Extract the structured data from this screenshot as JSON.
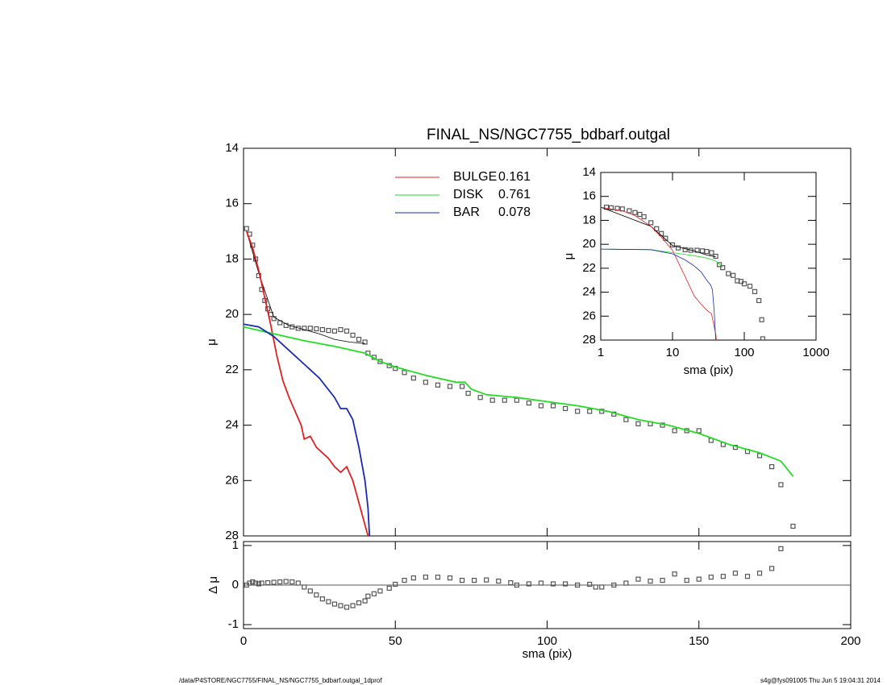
{
  "chart_data": [
    {
      "type": "line",
      "title": "FINAL_NS/NGC7755_bdbarf.outgal",
      "ylabel": "μ",
      "xlim": [
        0,
        200
      ],
      "ylim": [
        14,
        28
      ],
      "invert_y": true,
      "xticks": [
        0,
        50,
        100,
        150,
        200
      ],
      "yticks": [
        14,
        16,
        18,
        20,
        22,
        24,
        26,
        28
      ],
      "series": [
        {
          "marker": "square",
          "color": "#555555",
          "x": [
            1,
            2,
            3,
            4,
            5,
            6,
            7,
            8,
            9,
            10,
            12,
            14,
            16,
            18,
            20,
            22,
            24,
            26,
            28,
            30,
            32,
            34,
            36,
            38,
            40,
            41,
            43,
            45,
            48,
            50,
            53,
            56,
            60,
            64,
            68,
            72,
            74,
            78,
            82,
            86,
            90,
            94,
            98,
            102,
            106,
            110,
            114,
            118,
            122,
            126,
            130,
            134,
            138,
            142,
            146,
            150,
            154,
            158,
            162,
            166,
            170,
            174,
            177,
            181
          ],
          "values": [
            16.9,
            17.1,
            17.5,
            18.0,
            18.6,
            19.1,
            19.5,
            19.8,
            20.0,
            20.15,
            20.3,
            20.4,
            20.45,
            20.5,
            20.5,
            20.5,
            20.52,
            20.55,
            20.58,
            20.6,
            20.55,
            20.6,
            20.75,
            20.9,
            21.0,
            21.4,
            21.55,
            21.7,
            21.85,
            21.95,
            22.1,
            22.3,
            22.45,
            22.55,
            22.6,
            22.6,
            22.85,
            23.0,
            23.1,
            23.1,
            23.1,
            23.2,
            23.3,
            23.3,
            23.4,
            23.5,
            23.5,
            23.5,
            23.6,
            23.8,
            23.95,
            23.95,
            24.0,
            24.2,
            24.2,
            24.2,
            24.55,
            24.7,
            24.8,
            24.95,
            25.1,
            25.5,
            26.15,
            27.65
          ]
        },
        {
          "color": "#000000",
          "x": [
            1,
            5,
            10,
            15,
            20,
            25,
            30,
            35,
            40
          ],
          "values": [
            17.0,
            18.5,
            20.1,
            20.4,
            20.55,
            20.7,
            20.9,
            21.0,
            21.05
          ]
        },
        {
          "name": "BULGE",
          "fraction": 0.161,
          "color": "#e02020",
          "x": [
            1,
            3,
            5,
            7,
            9,
            11,
            13,
            15,
            17,
            19,
            20,
            22,
            24,
            26,
            28,
            30,
            32,
            34,
            36,
            38,
            40,
            41
          ],
          "values": [
            17.0,
            17.6,
            18.4,
            19.4,
            20.4,
            21.5,
            22.4,
            23.0,
            23.5,
            24.0,
            24.5,
            24.4,
            24.8,
            25.0,
            25.2,
            25.5,
            25.7,
            25.5,
            26.0,
            26.8,
            27.6,
            28.0
          ]
        },
        {
          "name": "DISK",
          "fraction": 0.761,
          "color": "#22dd22",
          "x": [
            0,
            10,
            20,
            30,
            40,
            45,
            50,
            60,
            70,
            73,
            75,
            80,
            90,
            100,
            110,
            120,
            130,
            140,
            150,
            160,
            170,
            177,
            181
          ],
          "values": [
            20.45,
            20.7,
            20.95,
            21.15,
            21.4,
            21.7,
            21.9,
            22.2,
            22.45,
            22.45,
            22.7,
            22.9,
            23.0,
            23.15,
            23.3,
            23.5,
            23.8,
            24.0,
            24.3,
            24.7,
            25.0,
            25.3,
            25.85
          ]
        },
        {
          "name": "BAR",
          "fraction": 0.078,
          "color": "#1a2ab0",
          "x": [
            0,
            5,
            10,
            15,
            20,
            25,
            30,
            32,
            34,
            36,
            38,
            40,
            41,
            41.5
          ],
          "values": [
            20.35,
            20.45,
            20.8,
            21.3,
            21.8,
            22.3,
            23.0,
            23.4,
            23.4,
            23.8,
            24.8,
            26.0,
            27.0,
            28.0
          ]
        }
      ]
    },
    {
      "type": "line",
      "xlabel": "sma (pix)",
      "ylabel": "Δ μ",
      "xlim": [
        0,
        200
      ],
      "ylim": [
        -1.1,
        1.1
      ],
      "reference_line": 0,
      "xticks": [
        0,
        50,
        100,
        150,
        200
      ],
      "yticks": [
        -1,
        0,
        1
      ],
      "series": [
        {
          "marker": "square",
          "color": "#555555",
          "x": [
            1,
            2,
            3,
            4,
            5,
            6,
            8,
            10,
            12,
            14,
            16,
            18,
            20,
            22,
            24,
            26,
            28,
            30,
            32,
            34,
            36,
            38,
            40,
            41,
            43,
            45,
            48,
            50,
            53,
            56,
            60,
            64,
            68,
            72,
            76,
            80,
            84,
            88,
            90,
            94,
            98,
            102,
            106,
            110,
            114,
            116,
            118,
            122,
            126,
            130,
            134,
            138,
            142,
            146,
            150,
            154,
            158,
            162,
            166,
            170,
            174,
            177
          ],
          "values": [
            0,
            0.05,
            0.08,
            0.05,
            0.03,
            0.05,
            0.06,
            0.07,
            0.08,
            0.09,
            0.08,
            0.05,
            -0.05,
            -0.15,
            -0.25,
            -0.35,
            -0.42,
            -0.48,
            -0.52,
            -0.56,
            -0.52,
            -0.45,
            -0.4,
            -0.28,
            -0.22,
            -0.15,
            -0.08,
            0.02,
            0.12,
            0.18,
            0.2,
            0.2,
            0.18,
            0.12,
            0.12,
            0.13,
            0.1,
            0.06,
            0.0,
            0.03,
            0.05,
            0.03,
            0.03,
            0.0,
            0.02,
            -0.05,
            -0.05,
            0.0,
            0.05,
            0.15,
            0.1,
            0.12,
            0.28,
            0.12,
            0.15,
            0.2,
            0.22,
            0.3,
            0.22,
            0.3,
            0.42,
            0.92
          ]
        }
      ]
    },
    {
      "type": "line",
      "xlabel": "sma (pix)",
      "ylabel": "μ",
      "log_x": true,
      "xlim": [
        1,
        1000
      ],
      "ylim": [
        14,
        28
      ],
      "invert_y": true,
      "xticks": [
        1,
        10,
        100,
        1000
      ],
      "yticks": [
        14,
        16,
        18,
        20,
        22,
        24,
        26,
        28
      ],
      "series": [
        {
          "marker": "square",
          "color": "#555555",
          "x": [
            1.2,
            1.4,
            1.7,
            2,
            2.5,
            3,
            3.5,
            4,
            5,
            6,
            7,
            8,
            10,
            12,
            15,
            18,
            22,
            26,
            30,
            35,
            40,
            45,
            50,
            60,
            70,
            80,
            90,
            100,
            120,
            140,
            160,
            175,
            181
          ],
          "values": [
            16.9,
            16.95,
            17.0,
            17.05,
            17.2,
            17.35,
            17.5,
            17.7,
            18.2,
            18.7,
            19.1,
            19.5,
            20.05,
            20.3,
            20.45,
            20.5,
            20.5,
            20.55,
            20.6,
            20.7,
            21.0,
            21.7,
            21.95,
            22.45,
            22.6,
            23.05,
            23.1,
            23.3,
            23.5,
            23.95,
            24.7,
            26.3,
            27.9
          ]
        },
        {
          "color": "#000000",
          "x": [
            1,
            5,
            10,
            20,
            30,
            40
          ],
          "values": [
            16.9,
            18.5,
            20.1,
            20.55,
            20.9,
            21.05
          ]
        },
        {
          "color": "#e02020",
          "x": [
            1,
            2,
            3,
            5,
            7,
            10,
            15,
            20,
            25,
            30,
            35,
            40,
            41
          ],
          "values": [
            16.9,
            17.2,
            17.6,
            18.5,
            19.4,
            20.5,
            22.7,
            24.3,
            25.0,
            25.5,
            25.8,
            27.5,
            28
          ]
        },
        {
          "color": "#22dd22",
          "x": [
            1,
            5,
            10,
            20,
            30,
            40,
            50
          ],
          "values": [
            20.4,
            20.45,
            20.7,
            20.95,
            21.15,
            21.4,
            21.9
          ]
        },
        {
          "color": "#1a2ab0",
          "x": [
            1,
            5,
            10,
            15,
            20,
            25,
            30,
            34,
            36,
            38,
            40
          ],
          "values": [
            20.4,
            20.45,
            20.8,
            21.3,
            21.8,
            22.3,
            23.0,
            23.4,
            23.8,
            25.5,
            28
          ]
        }
      ]
    }
  ],
  "footer": {
    "left": "/data/P4STORE/NGC7755/FINAL_NS/NGC7755_bdbarf.outgal_1dprof",
    "right": "s4g@fys091005  Thu Jun  5 19:04:31 2014"
  }
}
